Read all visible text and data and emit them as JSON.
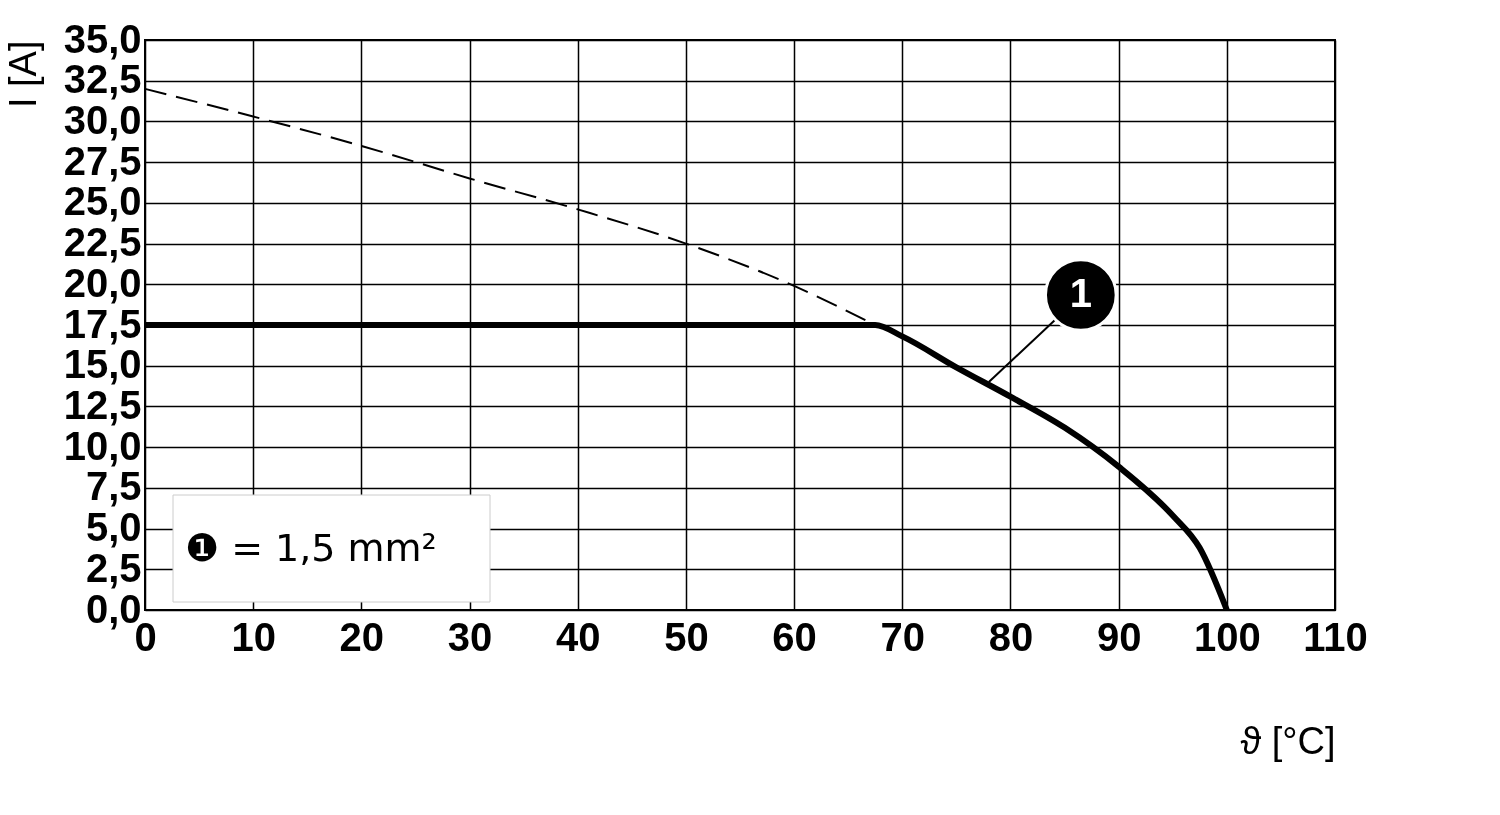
{
  "chart_data": {
    "type": "line",
    "xlabel": "ϑ [°C]",
    "ylabel": "I [A]",
    "series": [
      {
        "color": "#000000",
        "line_style": "dashed",
        "x": [
          0,
          10,
          20,
          30,
          40,
          50,
          60,
          67.5
        ],
        "values": [
          32.0,
          30.3,
          28.5,
          26.5,
          24.6,
          22.5,
          19.9,
          17.5
        ]
      },
      {
        "color": "#000000",
        "line_style": "solid",
        "x": [
          0,
          67.5,
          70,
          75,
          80,
          85,
          90,
          95,
          97.5,
          100
        ],
        "values": [
          17.5,
          17.5,
          16.8,
          14.9,
          13.1,
          11.2,
          8.8,
          5.8,
          3.8,
          0
        ]
      }
    ],
    "xlim": [
      0,
      110
    ],
    "xticks": [
      0,
      10,
      20,
      30,
      40,
      50,
      60,
      70,
      80,
      90,
      100,
      110
    ],
    "ylim": [
      0,
      35
    ],
    "yticks": [
      {
        "value": 0,
        "label": "0,0"
      },
      {
        "value": 2.5,
        "label": "2,5"
      },
      {
        "value": 5,
        "label": "5,0"
      },
      {
        "value": 7.5,
        "label": "7,5"
      },
      {
        "value": 10,
        "label": "10,0"
      },
      {
        "value": 12.5,
        "label": "12,5"
      },
      {
        "value": 15,
        "label": "15,0"
      },
      {
        "value": 17.5,
        "label": "17,5"
      },
      {
        "value": 20,
        "label": "20,0"
      },
      {
        "value": 22.5,
        "label": "22,5"
      },
      {
        "value": 25,
        "label": "25,0"
      },
      {
        "value": 27.5,
        "label": "27,5"
      },
      {
        "value": 30,
        "label": "30,0"
      },
      {
        "value": 32.5,
        "label": "32,5"
      },
      {
        "value": 35,
        "label": "35,0"
      }
    ],
    "annotations": [
      {
        "text": "1",
        "x": 78,
        "y": 14
      },
      "❶ = 1,5 mm²"
    ],
    "grid": true,
    "marker": "none"
  }
}
